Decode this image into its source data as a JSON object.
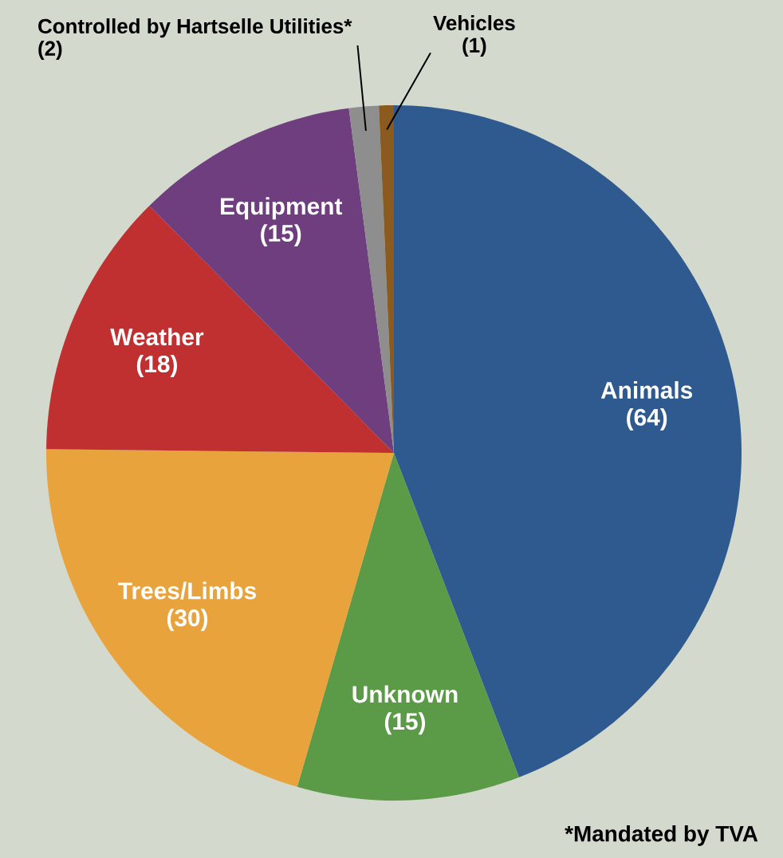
{
  "chart_data": {
    "type": "pie",
    "categories": [
      "Animals",
      "Unknown",
      "Trees/Limbs",
      "Weather",
      "Equipment",
      "Controlled by Hartselle Utilities*",
      "Vehicles"
    ],
    "values": [
      64,
      15,
      30,
      18,
      15,
      2,
      1
    ],
    "colors": [
      "#2e5a8f",
      "#5b9a47",
      "#e8a33d",
      "#c03030",
      "#6f3e7e",
      "#8e8e8e",
      "#8a5a1e"
    ],
    "value_labels": [
      "(64)",
      "(15)",
      "(30)",
      "(18)",
      "(15)",
      "(2)",
      "(1)"
    ],
    "annotations": [
      "*Mandated by TVA"
    ]
  }
}
